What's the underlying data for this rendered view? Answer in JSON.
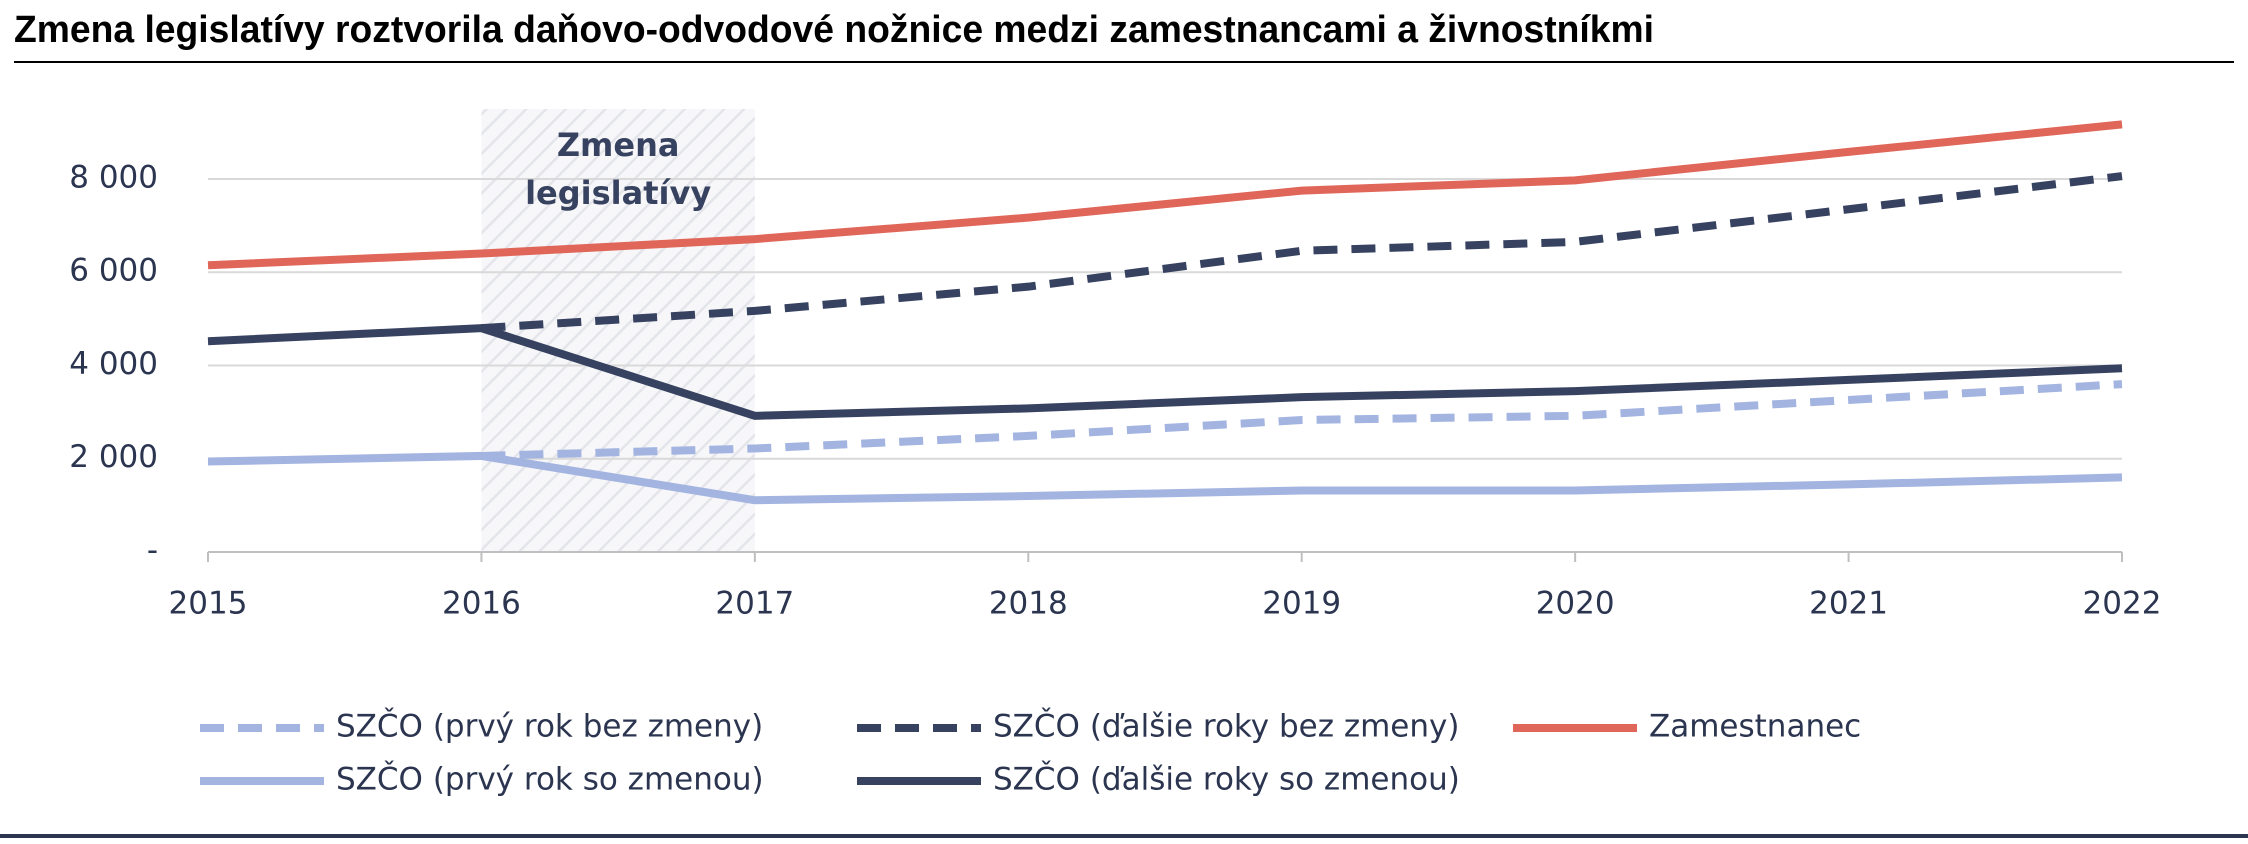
{
  "chart_data": {
    "type": "line",
    "title": "Zmena legislatívy roztvorila daňovo-odvodové nožnice medzi zamestnancami a živnostníkmi",
    "annotation": "Zmena legislatívy",
    "annotation_span": [
      "2016",
      "2017"
    ],
    "categories": [
      "2015",
      "2016",
      "2017",
      "2018",
      "2019",
      "2020",
      "2021",
      "2022"
    ],
    "series": [
      {
        "name": "SZČO (prvý rok bez zmeny)",
        "color": "#a3b4e0",
        "dashed": true,
        "values": [
          null,
          2060,
          2220,
          2490,
          2830,
          2920,
          3260,
          3600
        ]
      },
      {
        "name": "SZČO (ďalšie roky bez zmeny)",
        "color": "#374260",
        "dashed": true,
        "values": [
          null,
          4800,
          5170,
          5690,
          6460,
          6650,
          7350,
          8060
        ]
      },
      {
        "name": "Zamestnanec",
        "color": "#e0665a",
        "dashed": false,
        "values": [
          6150,
          6400,
          6710,
          7170,
          7750,
          7970,
          8580,
          9170
        ]
      },
      {
        "name": "SZČO (prvý rok so zmenou)",
        "color": "#a3b4e0",
        "dashed": false,
        "values": [
          1940,
          2060,
          1110,
          1200,
          1320,
          1320,
          1450,
          1600
        ]
      },
      {
        "name": "SZČO (ďalšie roky so zmenou)",
        "color": "#374260",
        "dashed": false,
        "values": [
          4520,
          4800,
          2920,
          3080,
          3320,
          3450,
          3690,
          3940
        ]
      }
    ],
    "ylim": [
      0,
      9500
    ],
    "yticks": [
      {
        "value": 0,
        "label": "-"
      },
      {
        "value": 2000,
        "label": "2 000"
      },
      {
        "value": 4000,
        "label": "4 000"
      },
      {
        "value": 6000,
        "label": "6 000"
      },
      {
        "value": 8000,
        "label": "8 000"
      }
    ],
    "grid": true
  }
}
